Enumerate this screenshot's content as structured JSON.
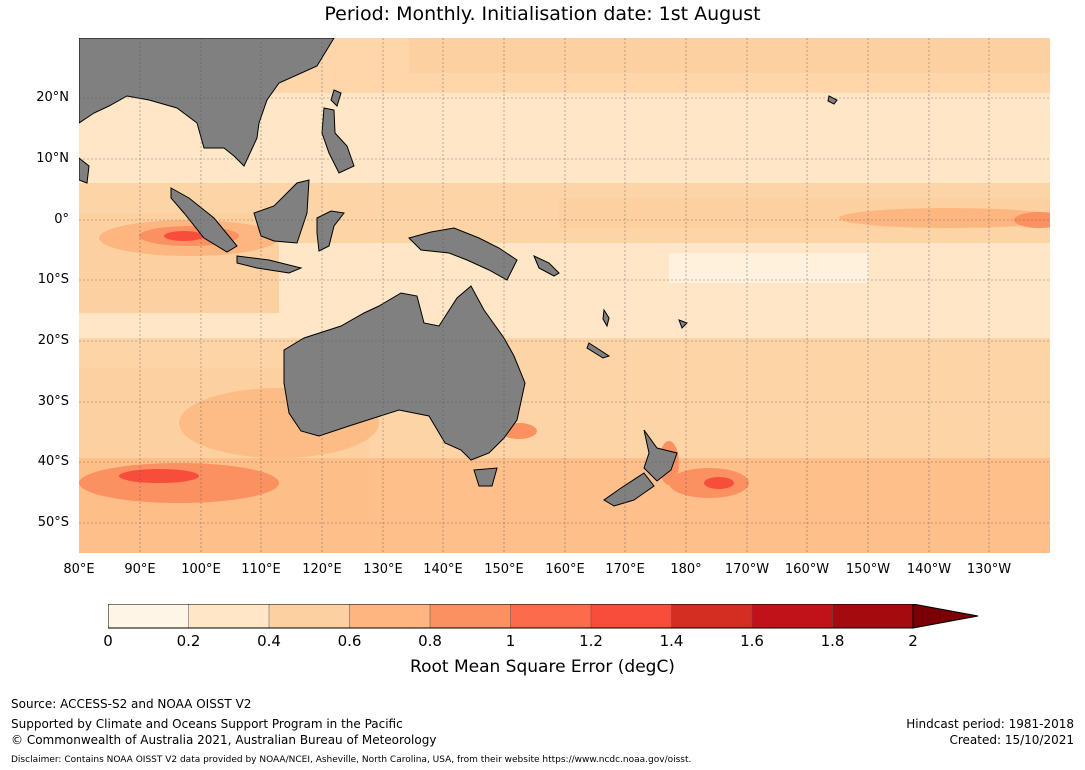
{
  "title_line": "Period: Monthly. Initialisation date: 1st August",
  "lat_labels": [
    "20°N",
    "10°N",
    "0°",
    "10°S",
    "20°S",
    "30°S",
    "40°S",
    "50°S"
  ],
  "lon_labels": [
    "80°E",
    "90°E",
    "100°E",
    "110°E",
    "120°E",
    "130°E",
    "140°E",
    "150°E",
    "160°E",
    "170°E",
    "180°",
    "170°W",
    "160°W",
    "150°W",
    "140°W",
    "130°W"
  ],
  "colorbar": {
    "label": "Root Mean Square Error (degC)",
    "ticks": [
      "0",
      "0.2",
      "0.4",
      "0.6",
      "0.8",
      "1",
      "1.2",
      "1.4",
      "1.6",
      "1.8",
      "2"
    ],
    "colors": [
      "#fff5e6",
      "#fee6c6",
      "#fdd09f",
      "#fdb67f",
      "#fb9060",
      "#fc6b4a",
      "#f94d3b",
      "#d42d21",
      "#c1121a",
      "#a50a0f"
    ],
    "extend_color": "#7a0005"
  },
  "colors": {
    "land": "#808080",
    "ocean_low": "#fee6c6",
    "ocean_mid": "#fdd09f"
  },
  "footer": {
    "source": "Source: ACCESS-S2 and NOAA OISST V2",
    "support": "Supported by Climate and Oceans Support Program in the Pacific",
    "copyright": "© Commonwealth of Australia 2021, Australian Bureau of Meteorology",
    "hindcast": "Hindcast period: 1981-2018",
    "created": "Created: 15/10/2021",
    "disclaimer": "Disclaimer: Contains NOAA OISST V2 data provided by NOAA/NCEI, Asheville, North Carolina, USA, from their website https://www.ncdc.noaa.gov/oisst."
  }
}
